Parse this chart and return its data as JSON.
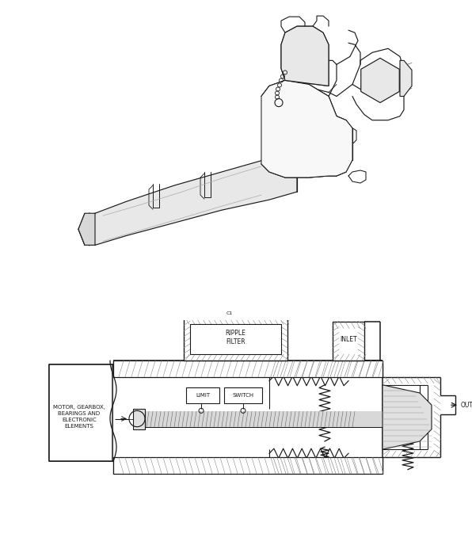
{
  "bg_color": "#ffffff",
  "line_color": "#1a1a1a",
  "labels": {
    "inlet": "INLET",
    "outlet": "OUTLET",
    "ripple_filter": "RIPPLE\nFILTER",
    "limit": "LIMIT",
    "switch": "SWITCH",
    "motor": "MOTOR, GEARBOX,\nBEARINGS AND\nELECTRONIC\nELEMENTS",
    "c1": "C1"
  }
}
